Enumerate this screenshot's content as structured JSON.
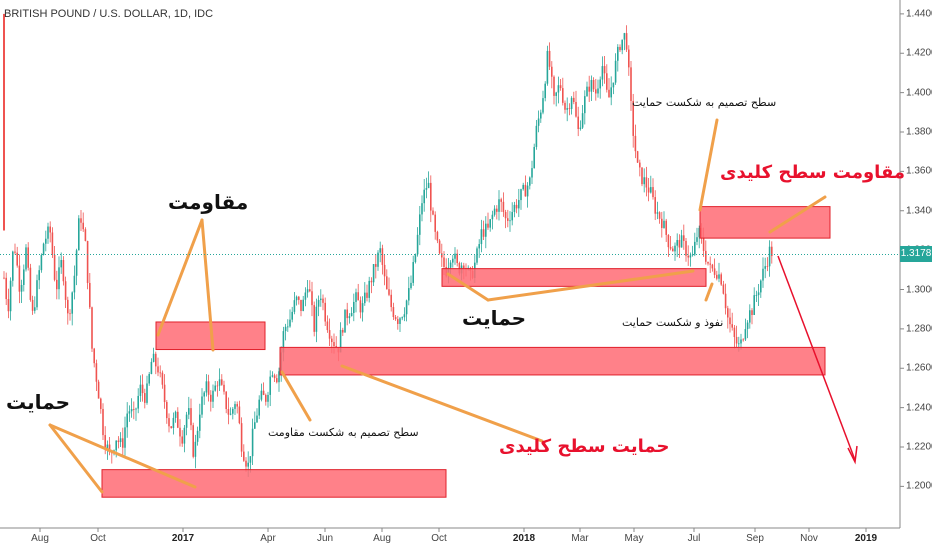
{
  "chart_data": {
    "type": "candlestick",
    "title": "BRITISH POUND / U.S. DOLLAR, 1D, IDC",
    "xlabel": "",
    "ylabel": "",
    "ylim": [
      1.188,
      1.444
    ],
    "y_ticks": [
      "1.2000",
      "1.2200",
      "1.2400",
      "1.2600",
      "1.2800",
      "1.3000",
      "1.3200",
      "1.3400",
      "1.3600",
      "1.3800",
      "1.4000",
      "1.4200",
      "1.4400"
    ],
    "x_ticks": [
      {
        "label": "Aug",
        "bold": false
      },
      {
        "label": "Oct",
        "bold": false
      },
      {
        "label": "2017",
        "bold": true
      },
      {
        "label": "Apr",
        "bold": false
      },
      {
        "label": "Jun",
        "bold": false
      },
      {
        "label": "Aug",
        "bold": false
      },
      {
        "label": "Oct",
        "bold": false
      },
      {
        "label": "2018",
        "bold": true
      },
      {
        "label": "Mar",
        "bold": false
      },
      {
        "label": "May",
        "bold": false
      },
      {
        "label": "Jul",
        "bold": false
      },
      {
        "label": "Sep",
        "bold": false
      },
      {
        "label": "Nov",
        "bold": false
      },
      {
        "label": "2019",
        "bold": true
      }
    ],
    "last_price": "1.3178",
    "price_path_anchors": [
      [
        0,
        1.435
      ],
      [
        3,
        1.31
      ],
      [
        8,
        1.29
      ],
      [
        14,
        1.325
      ],
      [
        20,
        1.3
      ],
      [
        26,
        1.32
      ],
      [
        32,
        1.285
      ],
      [
        38,
        1.305
      ],
      [
        44,
        1.325
      ],
      [
        50,
        1.33
      ],
      [
        56,
        1.3
      ],
      [
        62,
        1.315
      ],
      [
        68,
        1.285
      ],
      [
        74,
        1.305
      ],
      [
        80,
        1.34
      ],
      [
        86,
        1.32
      ],
      [
        92,
        1.27
      ],
      [
        98,
        1.25
      ],
      [
        104,
        1.225
      ],
      [
        110,
        1.215
      ],
      [
        116,
        1.225
      ],
      [
        122,
        1.22
      ],
      [
        128,
        1.24
      ],
      [
        134,
        1.235
      ],
      [
        140,
        1.25
      ],
      [
        146,
        1.245
      ],
      [
        152,
        1.265
      ],
      [
        158,
        1.26
      ],
      [
        164,
        1.245
      ],
      [
        170,
        1.23
      ],
      [
        176,
        1.235
      ],
      [
        182,
        1.225
      ],
      [
        188,
        1.24
      ],
      [
        194,
        1.215
      ],
      [
        200,
        1.24
      ],
      [
        206,
        1.25
      ],
      [
        212,
        1.245
      ],
      [
        218,
        1.255
      ],
      [
        224,
        1.245
      ],
      [
        230,
        1.235
      ],
      [
        236,
        1.245
      ],
      [
        242,
        1.22
      ],
      [
        248,
        1.21
      ],
      [
        254,
        1.23
      ],
      [
        260,
        1.245
      ],
      [
        266,
        1.245
      ],
      [
        272,
        1.26
      ],
      [
        278,
        1.255
      ],
      [
        284,
        1.28
      ],
      [
        290,
        1.285
      ],
      [
        296,
        1.295
      ],
      [
        302,
        1.29
      ],
      [
        308,
        1.305
      ],
      [
        314,
        1.28
      ],
      [
        320,
        1.3
      ],
      [
        326,
        1.285
      ],
      [
        332,
        1.275
      ],
      [
        338,
        1.27
      ],
      [
        344,
        1.285
      ],
      [
        350,
        1.29
      ],
      [
        356,
        1.295
      ],
      [
        362,
        1.29
      ],
      [
        368,
        1.3
      ],
      [
        374,
        1.31
      ],
      [
        380,
        1.32
      ],
      [
        386,
        1.3
      ],
      [
        392,
        1.29
      ],
      [
        398,
        1.285
      ],
      [
        404,
        1.29
      ],
      [
        410,
        1.3
      ],
      [
        416,
        1.32
      ],
      [
        422,
        1.345
      ],
      [
        428,
        1.355
      ],
      [
        434,
        1.33
      ],
      [
        440,
        1.315
      ],
      [
        446,
        1.31
      ],
      [
        452,
        1.32
      ],
      [
        458,
        1.31
      ],
      [
        464,
        1.315
      ],
      [
        470,
        1.305
      ],
      [
        476,
        1.315
      ],
      [
        482,
        1.33
      ],
      [
        488,
        1.33
      ],
      [
        494,
        1.34
      ],
      [
        500,
        1.345
      ],
      [
        506,
        1.335
      ],
      [
        512,
        1.34
      ],
      [
        518,
        1.345
      ],
      [
        524,
        1.35
      ],
      [
        530,
        1.355
      ],
      [
        536,
        1.38
      ],
      [
        542,
        1.395
      ],
      [
        548,
        1.42
      ],
      [
        554,
        1.395
      ],
      [
        560,
        1.405
      ],
      [
        566,
        1.39
      ],
      [
        572,
        1.4
      ],
      [
        578,
        1.38
      ],
      [
        584,
        1.395
      ],
      [
        590,
        1.405
      ],
      [
        596,
        1.4
      ],
      [
        602,
        1.415
      ],
      [
        608,
        1.395
      ],
      [
        614,
        1.41
      ],
      [
        620,
        1.425
      ],
      [
        626,
        1.43
      ],
      [
        632,
        1.385
      ],
      [
        638,
        1.36
      ],
      [
        644,
        1.355
      ],
      [
        650,
        1.35
      ],
      [
        656,
        1.34
      ],
      [
        662,
        1.335
      ],
      [
        668,
        1.325
      ],
      [
        674,
        1.32
      ],
      [
        680,
        1.325
      ],
      [
        686,
        1.32
      ],
      [
        692,
        1.315
      ],
      [
        698,
        1.33
      ],
      [
        704,
        1.32
      ],
      [
        710,
        1.31
      ],
      [
        716,
        1.31
      ],
      [
        722,
        1.305
      ],
      [
        728,
        1.285
      ],
      [
        734,
        1.275
      ],
      [
        740,
        1.27
      ],
      [
        746,
        1.285
      ],
      [
        752,
        1.29
      ],
      [
        758,
        1.3
      ],
      [
        764,
        1.31
      ],
      [
        770,
        1.32
      ],
      [
        774,
        1.3178
      ]
    ],
    "zones": [
      {
        "kind": "support",
        "x1": 102,
        "x2": 446,
        "ymid": 1.2015,
        "h": 0.014
      },
      {
        "kind": "resistance",
        "x1": 156,
        "x2": 265,
        "ymid": 1.2765,
        "h": 0.014
      },
      {
        "kind": "key-support",
        "x1": 280,
        "x2": 825,
        "ymid": 1.2636,
        "h": 0.014
      },
      {
        "kind": "support",
        "x1": 442,
        "x2": 706,
        "ymid": 1.3061,
        "h": 0.009
      },
      {
        "kind": "key-resistance",
        "x1": 700,
        "x2": 830,
        "ymid": 1.3341,
        "h": 0.016
      }
    ],
    "annotations": {
      "resistance_label": "مقاومت",
      "support_label_left": "حمایت",
      "support_label_mid": "حمایت",
      "key_resistance_label": "مقاومت سطح کلیدی",
      "key_support_label": "حمایت سطح کلیدی",
      "decision_break_resistance": "سطح تصمیم به شکست مقاومت",
      "decision_break_support": "سطح تصمیم به شکست حمایت",
      "penetration_break_support": "نفوذ و شکست حمایت"
    },
    "colors": {
      "candle_up": "#26a69a",
      "candle_down": "#ef5350",
      "zone_fill": "#ff6b74",
      "zone_stroke": "#e0202a",
      "arrow_orange": "#f0a04a",
      "arrow_red": "#e8112d",
      "price_badge": "#26a69a"
    },
    "grid": false
  }
}
